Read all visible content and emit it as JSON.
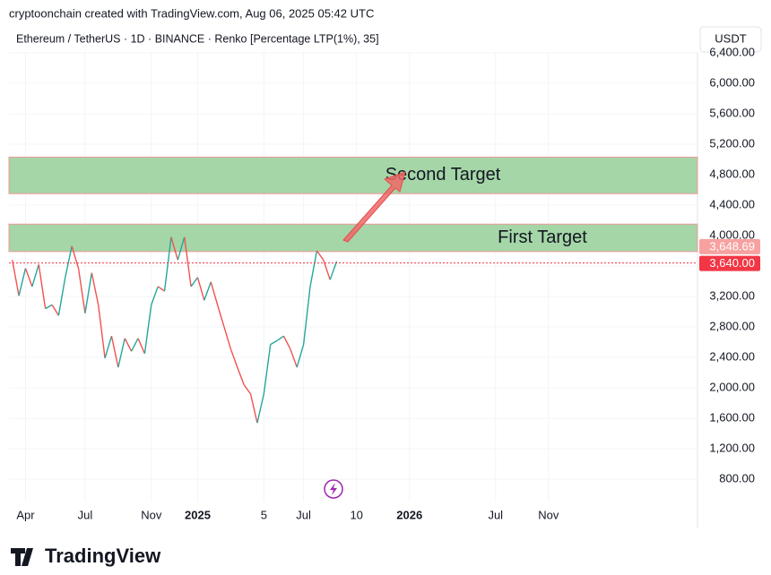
{
  "header": {
    "credit": "cryptoonchain created with TradingView.com, Aug 06, 2025 05:42 UTC",
    "symbol": "Ethereum / TetherUS · 1D · BINANCE · Renko [Percentage LTP(1%), 35]",
    "currency": "USDT",
    "logo_text": "TradingView"
  },
  "chart_data": {
    "type": "renko-line",
    "up_color": "#26a69a",
    "down_color": "#ef5350",
    "grid": true,
    "categories": [
      null,
      null,
      "Apr",
      null,
      null,
      null,
      null,
      null,
      null,
      null,
      null,
      "Jul",
      null,
      null,
      null,
      null,
      null,
      null,
      null,
      null,
      null,
      "Nov",
      null,
      null,
      null,
      null,
      null,
      null,
      "2025",
      null,
      null,
      null,
      null,
      null,
      null,
      null,
      null,
      null,
      "5",
      null,
      null,
      null,
      null,
      null,
      "Jul",
      null,
      null,
      null,
      null,
      null,
      null,
      null,
      "10",
      null,
      null,
      null,
      null,
      null,
      null,
      null,
      "2026",
      null,
      null,
      null,
      null,
      null,
      null,
      null,
      null,
      null,
      null,
      null,
      null,
      "Jul",
      null,
      null,
      null,
      null,
      null,
      null,
      null,
      "Nov",
      null,
      null,
      null,
      null,
      null,
      null,
      null,
      null,
      null,
      null,
      null,
      null,
      null,
      null,
      null,
      null,
      null,
      null,
      null,
      null,
      null,
      null
    ],
    "values": [
      3680,
      3210,
      3570,
      3330,
      3620,
      3040,
      3090,
      2950,
      3450,
      3860,
      3570,
      2980,
      3510,
      3090,
      2390,
      2680,
      2270,
      2650,
      2480,
      2650,
      2450,
      3090,
      3330,
      3270,
      3980,
      3680,
      3980,
      3330,
      3450,
      3150,
      3390,
      3090,
      2800,
      2510,
      2270,
      2040,
      1920,
      1540,
      1920,
      2570,
      2620,
      2680,
      2510,
      2270,
      2570,
      3330,
      3800,
      3680,
      3420,
      3660,
      null,
      null,
      null,
      null,
      null,
      null,
      null,
      null,
      null,
      null,
      null,
      null,
      null,
      null,
      null,
      null,
      null,
      null,
      null,
      null,
      null,
      null,
      null,
      null,
      null,
      null,
      null,
      null,
      null,
      null,
      null,
      null,
      null,
      null,
      null,
      null,
      null,
      null,
      null,
      null,
      null,
      null,
      null,
      null,
      null,
      null,
      null,
      null,
      null,
      null,
      null,
      null,
      null,
      null
    ],
    "ylim": [
      507,
      6411
    ],
    "yticks": [
      {
        "value": 800,
        "label": "800.00"
      },
      {
        "value": 1200,
        "label": "1,200.00"
      },
      {
        "value": 1600,
        "label": "1,600.00"
      },
      {
        "value": 2000,
        "label": "2,000.00"
      },
      {
        "value": 2400,
        "label": "2,400.00"
      },
      {
        "value": 2800,
        "label": "2,800.00"
      },
      {
        "value": 3200,
        "label": "3,200.00"
      },
      {
        "value": 3600,
        "label": "3,600.00"
      },
      {
        "value": 4000,
        "label": "4,000.00"
      },
      {
        "value": 4400,
        "label": "4,400.00"
      },
      {
        "value": 4800,
        "label": "4,800.00"
      },
      {
        "value": 5200,
        "label": "5,200.00"
      },
      {
        "value": 5600,
        "label": "5,600.00"
      },
      {
        "value": 6000,
        "label": "6,000.00"
      },
      {
        "value": 6400,
        "label": "6,400.00"
      }
    ],
    "zones": [
      {
        "label": "First Target",
        "from": 3790,
        "to": 4150
      },
      {
        "label": "Second Target",
        "from": 4550,
        "to": 5030
      }
    ],
    "zone_color": "#a5d6a7",
    "zone_border": "#ef9a9a",
    "price_labels": [
      {
        "value": 3648.69,
        "label": "3,648.69",
        "color": "#f7a1a1"
      },
      {
        "value": 3640,
        "label": "3,640.00",
        "color": "#f23645"
      }
    ]
  }
}
